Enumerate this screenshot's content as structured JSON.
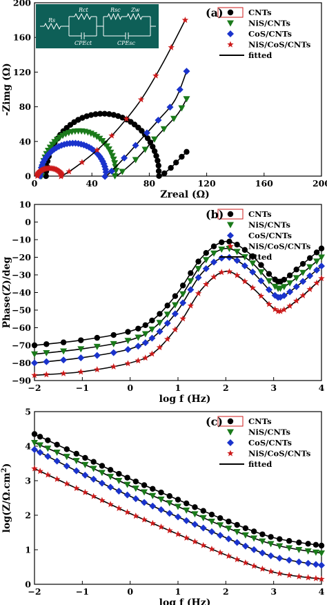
{
  "chart_data": [
    {
      "type": "scatter",
      "panel_label": "(a)",
      "xlabel": "Zreal (Ω)",
      "ylabel": "-Zimg (Ω)",
      "xlim": [
        0,
        200
      ],
      "ylim": [
        0,
        200
      ],
      "x_ticks": [
        0,
        40,
        80,
        120,
        160,
        200
      ],
      "y_ticks": [
        0,
        40,
        80,
        120,
        160,
        200
      ],
      "legend_position": "top-right",
      "legend_fit_label": "fitted",
      "inset_circuit_labels": [
        "Rs",
        "Rct",
        "CPEct",
        "Rsc",
        "Zw",
        "CPEsc"
      ],
      "series": [
        {
          "name": "CNTs",
          "color": "#000000",
          "marker": "circle",
          "arc": {
            "r0": 8,
            "r1": 87,
            "peak": 72
          },
          "tail": [
            [
              87,
              0
            ],
            [
              94,
              8
            ],
            [
              100,
              18
            ],
            [
              106,
              28
            ]
          ]
        },
        {
          "name": "NiS/CNTs",
          "color": "#1a7a1a",
          "marker": "triangle-down",
          "arc": {
            "r0": 5,
            "r1": 57,
            "peak": 52
          },
          "tail": [
            [
              57,
              0
            ],
            [
              70,
              18
            ],
            [
              80,
              36
            ],
            [
              90,
              54
            ],
            [
              100,
              72
            ],
            [
              106,
              89
            ]
          ]
        },
        {
          "name": "CoS/CNTs",
          "color": "#1a33cc",
          "marker": "diamond",
          "arc": {
            "r0": 4,
            "r1": 50,
            "peak": 38
          },
          "tail": [
            [
              50,
              0
            ],
            [
              62,
              20
            ],
            [
              74,
              42
            ],
            [
              86,
              64
            ],
            [
              98,
              88
            ],
            [
              106,
              121
            ]
          ]
        },
        {
          "name": "NiS/CoS/CNTs",
          "color": "#cc1a1a",
          "marker": "star",
          "arc": {
            "r0": 2,
            "r1": 19,
            "peak": 9
          },
          "tail": [
            [
              19,
              0
            ],
            [
              30,
              12
            ],
            [
              45,
              32
            ],
            [
              60,
              58
            ],
            [
              75,
              90
            ],
            [
              90,
              132
            ],
            [
              105,
              180
            ]
          ]
        }
      ]
    },
    {
      "type": "line",
      "panel_label": "(b)",
      "xlabel": "log f (Hz)",
      "ylabel": "Phase(Z)/deg",
      "xlim": [
        -2,
        4
      ],
      "ylim": [
        -90,
        10
      ],
      "x_ticks": [
        -2,
        -1,
        0,
        1,
        2,
        3,
        4
      ],
      "y_ticks": [
        -90,
        -80,
        -70,
        -60,
        -50,
        -40,
        -30,
        -20,
        -10,
        0,
        10
      ],
      "legend_position": "top-right",
      "legend_fit_label": "fitted",
      "series": [
        {
          "name": "CNTs",
          "color": "#000000",
          "marker": "circle",
          "points": [
            [
              -2,
              -70
            ],
            [
              -1,
              -67
            ],
            [
              0,
              -62
            ],
            [
              0.5,
              -55
            ],
            [
              1,
              -40
            ],
            [
              1.5,
              -20
            ],
            [
              2,
              -11
            ],
            [
              2.5,
              -18
            ],
            [
              3,
              -32
            ],
            [
              3.2,
              -33
            ],
            [
              3.6,
              -24
            ],
            [
              4,
              -15
            ]
          ]
        },
        {
          "name": "NiS/CNTs",
          "color": "#1a7a1a",
          "marker": "triangle-down",
          "points": [
            [
              -2,
              -75
            ],
            [
              -1,
              -72
            ],
            [
              0,
              -67
            ],
            [
              0.5,
              -60
            ],
            [
              1,
              -45
            ],
            [
              1.5,
              -24
            ],
            [
              2,
              -15
            ],
            [
              2.5,
              -22
            ],
            [
              3,
              -36
            ],
            [
              3.2,
              -37
            ],
            [
              3.6,
              -29
            ],
            [
              4,
              -20
            ]
          ]
        },
        {
          "name": "CoS/CNTs",
          "color": "#1a33cc",
          "marker": "diamond",
          "points": [
            [
              -2,
              -80
            ],
            [
              -1,
              -77
            ],
            [
              0,
              -72
            ],
            [
              0.5,
              -65
            ],
            [
              1,
              -50
            ],
            [
              1.5,
              -29
            ],
            [
              2,
              -20
            ],
            [
              2.5,
              -27
            ],
            [
              3,
              -41
            ],
            [
              3.2,
              -42
            ],
            [
              3.6,
              -34
            ],
            [
              4,
              -25
            ]
          ]
        },
        {
          "name": "NiS/CoS/CNTs",
          "color": "#cc1a1a",
          "marker": "star",
          "points": [
            [
              -2,
              -87
            ],
            [
              -1,
              -85
            ],
            [
              0,
              -80
            ],
            [
              0.5,
              -74
            ],
            [
              1,
              -59
            ],
            [
              1.5,
              -38
            ],
            [
              2,
              -28
            ],
            [
              2.5,
              -36
            ],
            [
              3,
              -49
            ],
            [
              3.2,
              -50
            ],
            [
              3.6,
              -42
            ],
            [
              4,
              -32
            ]
          ]
        }
      ]
    },
    {
      "type": "line",
      "panel_label": "(c)",
      "xlabel": "log f (Hz)",
      "ylabel": "log(Z/Ω.cm²)",
      "xlim": [
        -2,
        4
      ],
      "ylim": [
        0,
        5
      ],
      "x_ticks": [
        -2,
        -1,
        0,
        1,
        2,
        3,
        4
      ],
      "y_ticks": [
        0,
        1,
        2,
        3,
        4,
        5
      ],
      "legend_position": "top-right",
      "legend_fit_label": "fitted",
      "series": [
        {
          "name": "CNTs",
          "color": "#000000",
          "marker": "circle",
          "points": [
            [
              -2,
              4.35
            ],
            [
              -1,
              3.7
            ],
            [
              0,
              3.05
            ],
            [
              1,
              2.45
            ],
            [
              2,
              1.85
            ],
            [
              3,
              1.35
            ],
            [
              4,
              1.12
            ]
          ]
        },
        {
          "name": "NiS/CNTs",
          "color": "#1a7a1a",
          "marker": "triangle-down",
          "points": [
            [
              -2,
              4.1
            ],
            [
              -1,
              3.5
            ],
            [
              0,
              2.85
            ],
            [
              1,
              2.25
            ],
            [
              2,
              1.65
            ],
            [
              3,
              1.15
            ],
            [
              4,
              0.9
            ]
          ]
        },
        {
          "name": "CoS/CNTs",
          "color": "#1a33cc",
          "marker": "diamond",
          "points": [
            [
              -2,
              3.9
            ],
            [
              -1,
              3.2
            ],
            [
              0,
              2.55
            ],
            [
              1,
              1.95
            ],
            [
              2,
              1.35
            ],
            [
              3,
              0.8
            ],
            [
              4,
              0.55
            ]
          ]
        },
        {
          "name": "NiS/CoS/CNTs",
          "color": "#cc1a1a",
          "marker": "star",
          "points": [
            [
              -2,
              3.35
            ],
            [
              -1,
              2.7
            ],
            [
              0,
              2.05
            ],
            [
              1,
              1.45
            ],
            [
              2,
              0.85
            ],
            [
              3,
              0.35
            ],
            [
              4,
              0.15
            ]
          ]
        }
      ]
    }
  ]
}
